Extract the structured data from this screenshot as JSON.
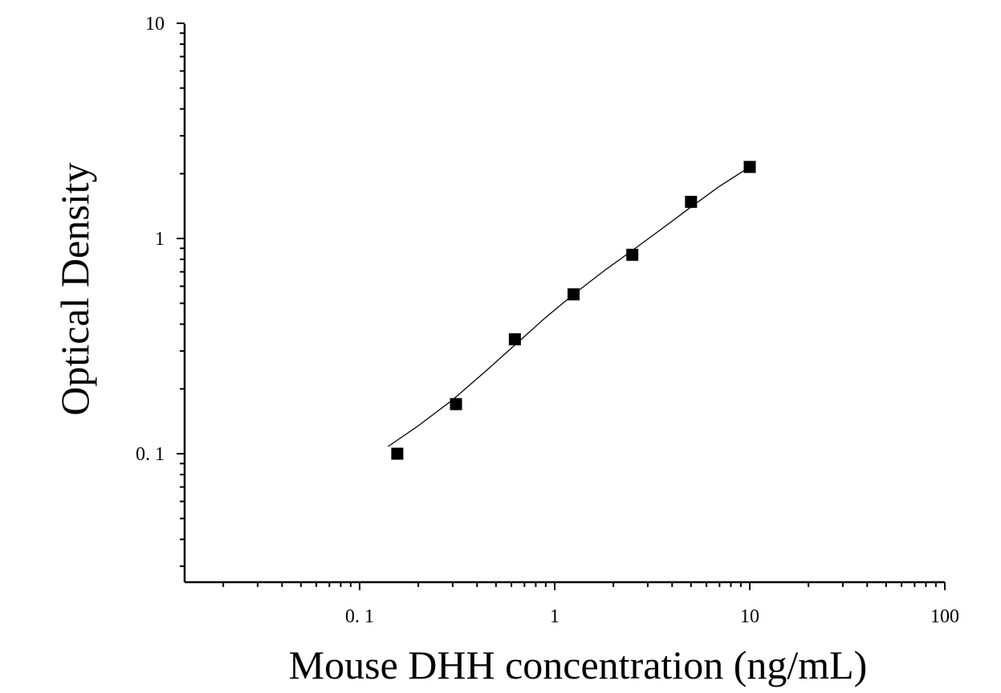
{
  "chart_data": {
    "type": "scatter",
    "xlabel": "Mouse DHH concentration (ng/mL)",
    "ylabel": "Optical Density",
    "x_scale": "log",
    "y_scale": "log",
    "xlim": [
      0.011,
      100
    ],
    "ylim": [
      0.025,
      10
    ],
    "x_ticks": [
      {
        "value": 0.1,
        "label": "0. 1"
      },
      {
        "value": 1,
        "label": "1"
      },
      {
        "value": 10,
        "label": "10"
      },
      {
        "value": 100,
        "label": "100"
      }
    ],
    "y_ticks": [
      {
        "value": 0.1,
        "label": "0. 1"
      },
      {
        "value": 1,
        "label": "1"
      },
      {
        "value": 10,
        "label": "10"
      }
    ],
    "grid": false,
    "legend": "none",
    "series": [
      {
        "x": [
          0.156,
          0.312,
          0.625,
          1.25,
          2.5,
          5,
          10
        ],
        "y": [
          0.1,
          0.17,
          0.34,
          0.55,
          0.84,
          1.48,
          2.15
        ],
        "marker": "square",
        "color": "#000000"
      }
    ],
    "fit_curve": {
      "x": [
        0.14,
        0.2,
        0.3,
        0.45,
        0.65,
        0.9,
        1.25,
        1.8,
        2.5,
        3.5,
        5,
        7,
        10
      ],
      "y": [
        0.108,
        0.135,
        0.178,
        0.245,
        0.33,
        0.43,
        0.55,
        0.71,
        0.88,
        1.1,
        1.4,
        1.75,
        2.15
      ],
      "color": "#000000"
    }
  }
}
